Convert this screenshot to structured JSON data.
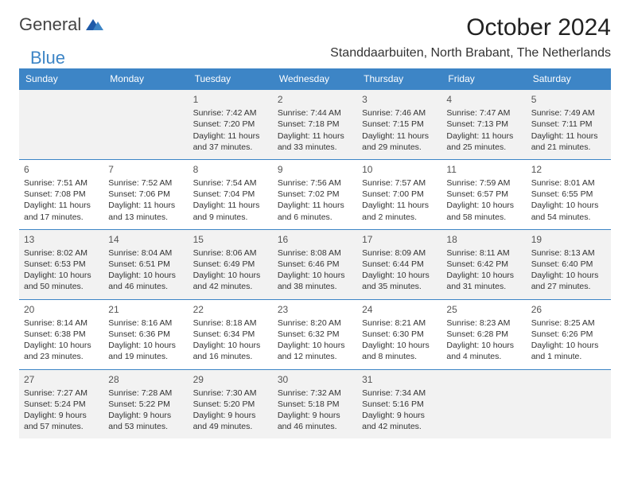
{
  "logo": {
    "text1": "General",
    "text2": "Blue"
  },
  "title": "October 2024",
  "subtitle": "Standdaarbuiten, North Brabant, The Netherlands",
  "colors": {
    "header_bg": "#3d85c6",
    "header_fg": "#ffffff",
    "row_alt_bg": "#f2f2f2",
    "row_bg": "#ffffff",
    "border": "#3d85c6",
    "text": "#333333",
    "logo_blue": "#3d85c6"
  },
  "typography": {
    "title_fontsize": 30,
    "subtitle_fontsize": 16,
    "dayheader_fontsize": 12,
    "cell_fontsize": 10.5
  },
  "calendar": {
    "type": "table",
    "columns": [
      "Sunday",
      "Monday",
      "Tuesday",
      "Wednesday",
      "Thursday",
      "Friday",
      "Saturday"
    ],
    "weeks": [
      [
        null,
        null,
        {
          "day": "1",
          "sunrise": "7:42 AM",
          "sunset": "7:20 PM",
          "daylight": "11 hours and 37 minutes."
        },
        {
          "day": "2",
          "sunrise": "7:44 AM",
          "sunset": "7:18 PM",
          "daylight": "11 hours and 33 minutes."
        },
        {
          "day": "3",
          "sunrise": "7:46 AM",
          "sunset": "7:15 PM",
          "daylight": "11 hours and 29 minutes."
        },
        {
          "day": "4",
          "sunrise": "7:47 AM",
          "sunset": "7:13 PM",
          "daylight": "11 hours and 25 minutes."
        },
        {
          "day": "5",
          "sunrise": "7:49 AM",
          "sunset": "7:11 PM",
          "daylight": "11 hours and 21 minutes."
        }
      ],
      [
        {
          "day": "6",
          "sunrise": "7:51 AM",
          "sunset": "7:08 PM",
          "daylight": "11 hours and 17 minutes."
        },
        {
          "day": "7",
          "sunrise": "7:52 AM",
          "sunset": "7:06 PM",
          "daylight": "11 hours and 13 minutes."
        },
        {
          "day": "8",
          "sunrise": "7:54 AM",
          "sunset": "7:04 PM",
          "daylight": "11 hours and 9 minutes."
        },
        {
          "day": "9",
          "sunrise": "7:56 AM",
          "sunset": "7:02 PM",
          "daylight": "11 hours and 6 minutes."
        },
        {
          "day": "10",
          "sunrise": "7:57 AM",
          "sunset": "7:00 PM",
          "daylight": "11 hours and 2 minutes."
        },
        {
          "day": "11",
          "sunrise": "7:59 AM",
          "sunset": "6:57 PM",
          "daylight": "10 hours and 58 minutes."
        },
        {
          "day": "12",
          "sunrise": "8:01 AM",
          "sunset": "6:55 PM",
          "daylight": "10 hours and 54 minutes."
        }
      ],
      [
        {
          "day": "13",
          "sunrise": "8:02 AM",
          "sunset": "6:53 PM",
          "daylight": "10 hours and 50 minutes."
        },
        {
          "day": "14",
          "sunrise": "8:04 AM",
          "sunset": "6:51 PM",
          "daylight": "10 hours and 46 minutes."
        },
        {
          "day": "15",
          "sunrise": "8:06 AM",
          "sunset": "6:49 PM",
          "daylight": "10 hours and 42 minutes."
        },
        {
          "day": "16",
          "sunrise": "8:08 AM",
          "sunset": "6:46 PM",
          "daylight": "10 hours and 38 minutes."
        },
        {
          "day": "17",
          "sunrise": "8:09 AM",
          "sunset": "6:44 PM",
          "daylight": "10 hours and 35 minutes."
        },
        {
          "day": "18",
          "sunrise": "8:11 AM",
          "sunset": "6:42 PM",
          "daylight": "10 hours and 31 minutes."
        },
        {
          "day": "19",
          "sunrise": "8:13 AM",
          "sunset": "6:40 PM",
          "daylight": "10 hours and 27 minutes."
        }
      ],
      [
        {
          "day": "20",
          "sunrise": "8:14 AM",
          "sunset": "6:38 PM",
          "daylight": "10 hours and 23 minutes."
        },
        {
          "day": "21",
          "sunrise": "8:16 AM",
          "sunset": "6:36 PM",
          "daylight": "10 hours and 19 minutes."
        },
        {
          "day": "22",
          "sunrise": "8:18 AM",
          "sunset": "6:34 PM",
          "daylight": "10 hours and 16 minutes."
        },
        {
          "day": "23",
          "sunrise": "8:20 AM",
          "sunset": "6:32 PM",
          "daylight": "10 hours and 12 minutes."
        },
        {
          "day": "24",
          "sunrise": "8:21 AM",
          "sunset": "6:30 PM",
          "daylight": "10 hours and 8 minutes."
        },
        {
          "day": "25",
          "sunrise": "8:23 AM",
          "sunset": "6:28 PM",
          "daylight": "10 hours and 4 minutes."
        },
        {
          "day": "26",
          "sunrise": "8:25 AM",
          "sunset": "6:26 PM",
          "daylight": "10 hours and 1 minute."
        }
      ],
      [
        {
          "day": "27",
          "sunrise": "7:27 AM",
          "sunset": "5:24 PM",
          "daylight": "9 hours and 57 minutes."
        },
        {
          "day": "28",
          "sunrise": "7:28 AM",
          "sunset": "5:22 PM",
          "daylight": "9 hours and 53 minutes."
        },
        {
          "day": "29",
          "sunrise": "7:30 AM",
          "sunset": "5:20 PM",
          "daylight": "9 hours and 49 minutes."
        },
        {
          "day": "30",
          "sunrise": "7:32 AM",
          "sunset": "5:18 PM",
          "daylight": "9 hours and 46 minutes."
        },
        {
          "day": "31",
          "sunrise": "7:34 AM",
          "sunset": "5:16 PM",
          "daylight": "9 hours and 42 minutes."
        },
        null,
        null
      ]
    ],
    "labels": {
      "sunrise": "Sunrise:",
      "sunset": "Sunset:",
      "daylight": "Daylight:"
    }
  }
}
